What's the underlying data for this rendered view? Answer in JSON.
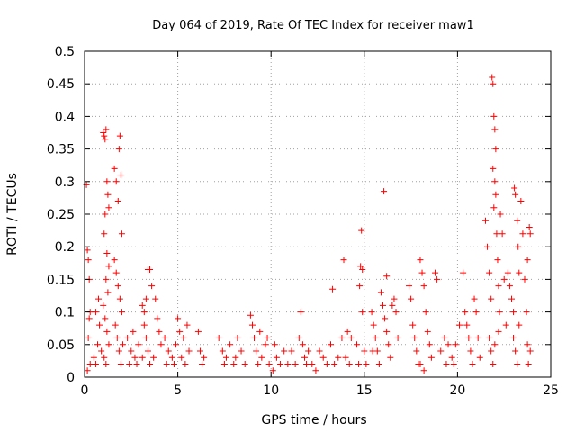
{
  "chart_data": {
    "type": "scatter",
    "title": "Day 064 of 2019, Rate Of TEC Index for receiver maw1",
    "xlabel": "GPS time / hours",
    "ylabel": "ROTI / TECUs",
    "xlim": [
      0,
      25
    ],
    "ylim": [
      0,
      0.5
    ],
    "xticks": [
      "0",
      "5",
      "10",
      "15",
      "20",
      "25"
    ],
    "yticks": [
      "0",
      "0.05",
      "0.1",
      "0.15",
      "0.2",
      "0.25",
      "0.3",
      "0.35",
      "0.4",
      "0.45",
      "0.5"
    ],
    "grid": true,
    "marker": "+",
    "color": "#ff0000",
    "series": [
      {
        "name": "ROTI",
        "points": [
          [
            0.1,
            0.295
          ],
          [
            0.15,
            0.195
          ],
          [
            0.2,
            0.18
          ],
          [
            0.25,
            0.15
          ],
          [
            0.3,
            0.1
          ],
          [
            0.2,
            0.06
          ],
          [
            0.3,
            0.02
          ],
          [
            0.15,
            0.01
          ],
          [
            0.25,
            0.09
          ],
          [
            0.5,
            0.03
          ],
          [
            0.6,
            0.02
          ],
          [
            0.7,
            0.05
          ],
          [
            0.8,
            0.08
          ],
          [
            0.9,
            0.04
          ],
          [
            0.6,
            0.1
          ],
          [
            0.75,
            0.12
          ],
          [
            1.0,
            0.375
          ],
          [
            1.05,
            0.37
          ],
          [
            1.1,
            0.365
          ],
          [
            1.15,
            0.38
          ],
          [
            1.2,
            0.3
          ],
          [
            1.25,
            0.28
          ],
          [
            1.3,
            0.26
          ],
          [
            1.1,
            0.25
          ],
          [
            1.05,
            0.22
          ],
          [
            1.2,
            0.19
          ],
          [
            1.3,
            0.17
          ],
          [
            1.15,
            0.15
          ],
          [
            1.25,
            0.13
          ],
          [
            1.0,
            0.11
          ],
          [
            1.1,
            0.09
          ],
          [
            1.2,
            0.07
          ],
          [
            1.3,
            0.05
          ],
          [
            1.05,
            0.03
          ],
          [
            1.15,
            0.02
          ],
          [
            1.6,
            0.32
          ],
          [
            1.7,
            0.3
          ],
          [
            1.8,
            0.27
          ],
          [
            1.85,
            0.35
          ],
          [
            1.9,
            0.37
          ],
          [
            1.95,
            0.31
          ],
          [
            2.0,
            0.22
          ],
          [
            1.6,
            0.18
          ],
          [
            1.7,
            0.16
          ],
          [
            1.8,
            0.14
          ],
          [
            1.9,
            0.12
          ],
          [
            2.0,
            0.1
          ],
          [
            1.65,
            0.08
          ],
          [
            1.75,
            0.06
          ],
          [
            1.85,
            0.04
          ],
          [
            1.95,
            0.02
          ],
          [
            2.05,
            0.05
          ],
          [
            2.3,
            0.06
          ],
          [
            2.5,
            0.04
          ],
          [
            2.7,
            0.03
          ],
          [
            2.9,
            0.05
          ],
          [
            2.4,
            0.02
          ],
          [
            2.6,
            0.07
          ],
          [
            2.8,
            0.02
          ],
          [
            3.1,
            0.11
          ],
          [
            3.2,
            0.08
          ],
          [
            3.3,
            0.06
          ],
          [
            3.4,
            0.165
          ],
          [
            3.5,
            0.165
          ],
          [
            3.6,
            0.14
          ],
          [
            3.3,
            0.12
          ],
          [
            3.2,
            0.1
          ],
          [
            3.4,
            0.04
          ],
          [
            3.5,
            0.02
          ],
          [
            3.7,
            0.03
          ],
          [
            3.8,
            0.12
          ],
          [
            3.9,
            0.09
          ],
          [
            4.0,
            0.07
          ],
          [
            4.1,
            0.05
          ],
          [
            3.1,
            0.03
          ],
          [
            4.3,
            0.06
          ],
          [
            4.5,
            0.04
          ],
          [
            4.7,
            0.03
          ],
          [
            4.9,
            0.05
          ],
          [
            5.1,
            0.07
          ],
          [
            5.3,
            0.06
          ],
          [
            5.5,
            0.08
          ],
          [
            5.6,
            0.04
          ],
          [
            4.4,
            0.02
          ],
          [
            4.8,
            0.02
          ],
          [
            5.2,
            0.03
          ],
          [
            5.4,
            0.02
          ],
          [
            5.0,
            0.09
          ],
          [
            6.1,
            0.07
          ],
          [
            6.2,
            0.04
          ],
          [
            6.3,
            0.02
          ],
          [
            6.4,
            0.03
          ],
          [
            7.2,
            0.06
          ],
          [
            7.4,
            0.04
          ],
          [
            7.6,
            0.03
          ],
          [
            7.8,
            0.05
          ],
          [
            8.0,
            0.02
          ],
          [
            8.2,
            0.06
          ],
          [
            8.4,
            0.04
          ],
          [
            8.6,
            0.02
          ],
          [
            7.5,
            0.02
          ],
          [
            8.1,
            0.03
          ],
          [
            8.9,
            0.095
          ],
          [
            9.0,
            0.08
          ],
          [
            9.1,
            0.06
          ],
          [
            9.2,
            0.04
          ],
          [
            9.3,
            0.02
          ],
          [
            9.5,
            0.03
          ],
          [
            9.7,
            0.05
          ],
          [
            9.9,
            0.02
          ],
          [
            10.1,
            0.01
          ],
          [
            10.3,
            0.03
          ],
          [
            10.5,
            0.02
          ],
          [
            10.7,
            0.04
          ],
          [
            10.9,
            0.02
          ],
          [
            9.4,
            0.07
          ],
          [
            9.8,
            0.06
          ],
          [
            10.2,
            0.05
          ],
          [
            11.1,
            0.04
          ],
          [
            11.3,
            0.02
          ],
          [
            11.5,
            0.06
          ],
          [
            11.7,
            0.05
          ],
          [
            11.9,
            0.02
          ],
          [
            11.6,
            0.1
          ],
          [
            11.8,
            0.03
          ],
          [
            12.0,
            0.04
          ],
          [
            12.2,
            0.02
          ],
          [
            12.4,
            0.01
          ],
          [
            12.6,
            0.04
          ],
          [
            12.8,
            0.03
          ],
          [
            13.0,
            0.02
          ],
          [
            13.2,
            0.05
          ],
          [
            13.4,
            0.02
          ],
          [
            13.3,
            0.135
          ],
          [
            13.6,
            0.03
          ],
          [
            13.8,
            0.06
          ],
          [
            14.0,
            0.03
          ],
          [
            14.2,
            0.02
          ],
          [
            14.1,
            0.07
          ],
          [
            14.3,
            0.06
          ],
          [
            13.9,
            0.18
          ],
          [
            14.6,
            0.05
          ],
          [
            14.7,
            0.02
          ],
          [
            14.8,
            0.17
          ],
          [
            14.9,
            0.165
          ],
          [
            14.85,
            0.225
          ],
          [
            14.75,
            0.14
          ],
          [
            14.9,
            0.1
          ],
          [
            15.0,
            0.04
          ],
          [
            15.1,
            0.02
          ],
          [
            15.4,
            0.1
          ],
          [
            15.5,
            0.08
          ],
          [
            15.6,
            0.06
          ],
          [
            15.7,
            0.04
          ],
          [
            15.8,
            0.02
          ],
          [
            15.9,
            0.13
          ],
          [
            16.0,
            0.11
          ],
          [
            16.1,
            0.09
          ],
          [
            16.2,
            0.07
          ],
          [
            16.3,
            0.05
          ],
          [
            16.4,
            0.03
          ],
          [
            16.5,
            0.11
          ],
          [
            16.6,
            0.12
          ],
          [
            16.7,
            0.1
          ],
          [
            16.8,
            0.06
          ],
          [
            16.05,
            0.285
          ],
          [
            16.2,
            0.155
          ],
          [
            15.45,
            0.04
          ],
          [
            17.4,
            0.14
          ],
          [
            17.5,
            0.12
          ],
          [
            17.6,
            0.08
          ],
          [
            17.7,
            0.06
          ],
          [
            17.8,
            0.04
          ],
          [
            17.9,
            0.02
          ],
          [
            18.0,
            0.18
          ],
          [
            18.1,
            0.16
          ],
          [
            18.2,
            0.14
          ],
          [
            18.3,
            0.1
          ],
          [
            18.4,
            0.07
          ],
          [
            18.5,
            0.05
          ],
          [
            18.6,
            0.03
          ],
          [
            18.8,
            0.16
          ],
          [
            18.9,
            0.15
          ],
          [
            18.0,
            0.02
          ],
          [
            18.2,
            0.01
          ],
          [
            19.1,
            0.04
          ],
          [
            19.3,
            0.06
          ],
          [
            19.5,
            0.05
          ],
          [
            19.7,
            0.03
          ],
          [
            19.9,
            0.05
          ],
          [
            20.1,
            0.08
          ],
          [
            19.4,
            0.02
          ],
          [
            19.8,
            0.02
          ],
          [
            20.3,
            0.16
          ],
          [
            20.4,
            0.1
          ],
          [
            20.5,
            0.08
          ],
          [
            20.6,
            0.06
          ],
          [
            20.7,
            0.04
          ],
          [
            20.8,
            0.02
          ],
          [
            20.9,
            0.12
          ],
          [
            21.0,
            0.1
          ],
          [
            21.1,
            0.06
          ],
          [
            21.2,
            0.03
          ],
          [
            21.5,
            0.24
          ],
          [
            21.6,
            0.2
          ],
          [
            21.7,
            0.16
          ],
          [
            21.8,
            0.12
          ],
          [
            21.85,
            0.46
          ],
          [
            21.9,
            0.45
          ],
          [
            21.95,
            0.4
          ],
          [
            22.0,
            0.38
          ],
          [
            22.05,
            0.35
          ],
          [
            21.9,
            0.32
          ],
          [
            22.0,
            0.3
          ],
          [
            22.05,
            0.28
          ],
          [
            21.95,
            0.26
          ],
          [
            22.1,
            0.22
          ],
          [
            22.15,
            0.18
          ],
          [
            22.2,
            0.14
          ],
          [
            22.25,
            0.1
          ],
          [
            22.3,
            0.25
          ],
          [
            22.4,
            0.22
          ],
          [
            22.5,
            0.15
          ],
          [
            22.6,
            0.08
          ],
          [
            21.7,
            0.06
          ],
          [
            21.8,
            0.04
          ],
          [
            21.9,
            0.02
          ],
          [
            22.0,
            0.05
          ],
          [
            22.2,
            0.07
          ],
          [
            22.7,
            0.16
          ],
          [
            22.8,
            0.14
          ],
          [
            22.9,
            0.12
          ],
          [
            23.0,
            0.1
          ],
          [
            23.05,
            0.29
          ],
          [
            23.1,
            0.28
          ],
          [
            23.2,
            0.24
          ],
          [
            23.25,
            0.2
          ],
          [
            23.3,
            0.16
          ],
          [
            23.4,
            0.27
          ],
          [
            23.5,
            0.22
          ],
          [
            23.6,
            0.15
          ],
          [
            23.7,
            0.1
          ],
          [
            23.75,
            0.05
          ],
          [
            23.8,
            0.02
          ],
          [
            23.9,
            0.04
          ],
          [
            23.0,
            0.06
          ],
          [
            23.1,
            0.04
          ],
          [
            23.2,
            0.02
          ],
          [
            23.3,
            0.08
          ],
          [
            23.85,
            0.23
          ],
          [
            23.9,
            0.22
          ],
          [
            23.75,
            0.18
          ]
        ]
      }
    ]
  }
}
